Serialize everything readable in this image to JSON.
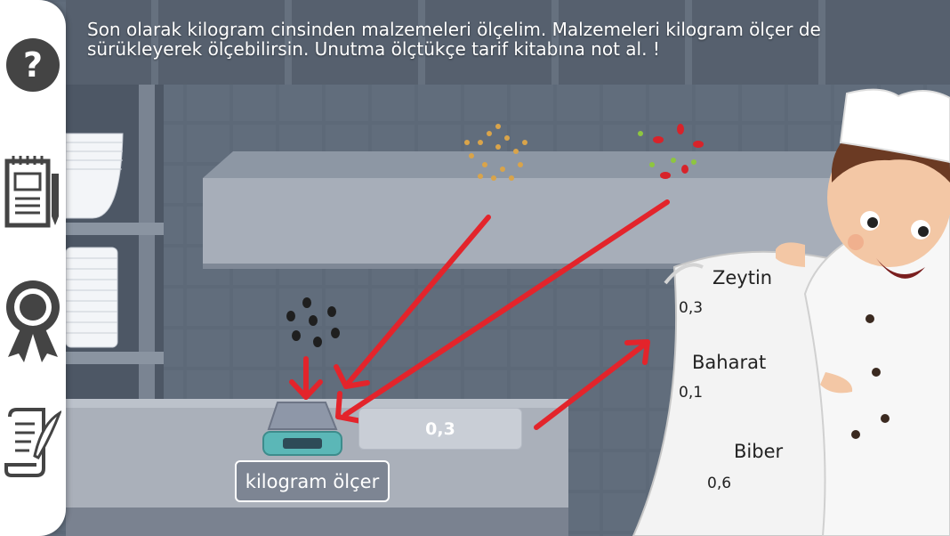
{
  "instruction": "Son olarak kilogram cinsinden malzemeleri ölçelim. Malzemeleri kilogram ölçer de sürükleyerek ölçebilirsin. Unutma ölçtükçe tarif kitabına not al. !",
  "scale": {
    "label": "kilogram ölçer",
    "reading": "0,3"
  },
  "recipe": [
    {
      "name": "Zeytin",
      "value": "0,3"
    },
    {
      "name": "Baharat",
      "value": "0,1"
    },
    {
      "name": "Biber",
      "value": "0,6"
    }
  ],
  "sidebar": [
    {
      "icon": "help-icon"
    },
    {
      "icon": "notebook-icon"
    },
    {
      "icon": "award-badge-icon"
    },
    {
      "icon": "scroll-quill-icon"
    }
  ],
  "ingredients": [
    "olives",
    "spice",
    "peppers"
  ],
  "colors": {
    "arrow": "#e3242b",
    "wall": "#5f6b7a",
    "counter": "#a9afb9",
    "scale": "#5bb7b7",
    "sidebar": "#ffffff",
    "icon": "#444444"
  }
}
